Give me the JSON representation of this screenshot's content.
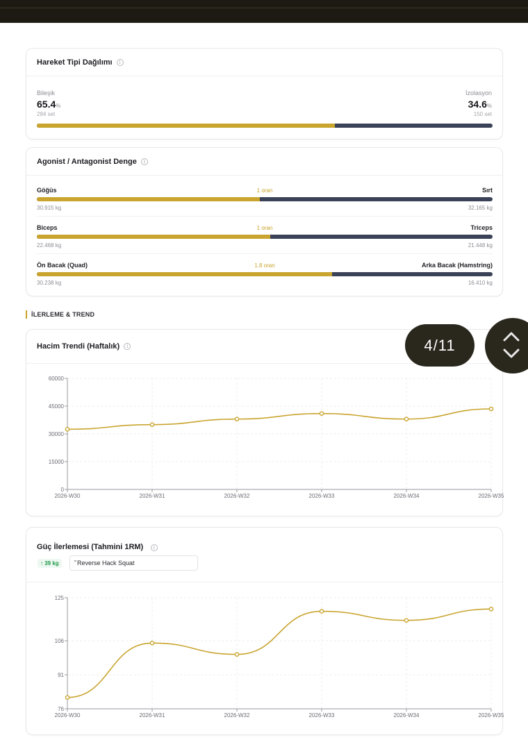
{
  "movement": {
    "title": "Hareket Tipi Dağılımı",
    "left_label": "Bileşik",
    "left_value": "65.4",
    "left_unit": "%",
    "left_sets": "284 set",
    "right_label": "İzolasyon",
    "right_value": "34.6",
    "right_unit": "%",
    "right_sets": "150 set",
    "split_fraction": 0.654
  },
  "balance": {
    "title": "Agonist / Antagonist Denge",
    "rows": [
      {
        "left": "Göğüs",
        "ratio": "1 oran",
        "right": "Sırt",
        "left_kg": "30.915 kg",
        "right_kg": "32.165 kg",
        "fraction": 0.49
      },
      {
        "left": "Biceps",
        "ratio": "1 oran",
        "right": "Triceps",
        "left_kg": "22.468 kg",
        "right_kg": "21.448 kg",
        "fraction": 0.512
      },
      {
        "left": "Ön Bacak (Quad)",
        "ratio": "1.8 oran",
        "right": "Arka Bacak (Hamstring)",
        "left_kg": "30.238 kg",
        "right_kg": "16.410 kg",
        "fraction": 0.648
      }
    ]
  },
  "section": {
    "label": "İLERLEME & TREND"
  },
  "pager": {
    "text": "4/11"
  },
  "volume": {
    "title": "Hacim Trendi (Haftalık)"
  },
  "strength": {
    "title": "Güç İlerlemesi (Tahmini 1RM)",
    "delta": "↑ 39 kg",
    "exercise": "Reverse Hack Squat"
  },
  "colors": {
    "gold": "#c9a42e",
    "navy": "#394257",
    "green": "#1f9a4c"
  },
  "chart_data": [
    {
      "type": "line",
      "title": "Hacim Trendi (Haftalık)",
      "categories": [
        "2026-W30",
        "2026-W31",
        "2026-W32",
        "2026-W33",
        "2026-W34",
        "2026-W35"
      ],
      "series": [
        {
          "values": [
            32500,
            35000,
            38000,
            41000,
            38000,
            43500
          ]
        }
      ],
      "yticks": [
        "60000",
        "45000",
        "30000",
        "15000",
        "0"
      ],
      "ylim": [
        0,
        60000
      ],
      "grid": true
    },
    {
      "type": "line",
      "title": "Güç İlerlemesi (Tahmini 1RM)",
      "categories": [
        "2026-W30",
        "2026-W31",
        "2026-W32",
        "2026-W33",
        "2026-W34",
        "2026-W35"
      ],
      "series": [
        {
          "values": [
            81,
            105,
            100,
            119,
            115,
            120
          ]
        }
      ],
      "yticks": [
        "125",
        "106",
        "91",
        "76"
      ],
      "ylim": [
        76,
        125
      ],
      "grid": true
    }
  ]
}
